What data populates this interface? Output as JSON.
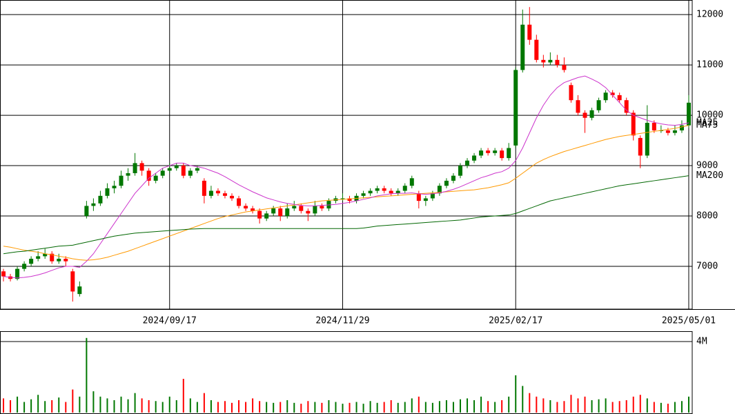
{
  "chart_data": [
    {
      "type": "candlestick",
      "categories": [
        null,
        null,
        null,
        null,
        null,
        null,
        null,
        null,
        null,
        null,
        null,
        null,
        null,
        null,
        null,
        null,
        null,
        null,
        null,
        null,
        null,
        null,
        null,
        null,
        "2024/09/17",
        null,
        null,
        null,
        null,
        null,
        null,
        null,
        null,
        null,
        null,
        null,
        null,
        null,
        null,
        null,
        null,
        null,
        null,
        null,
        null,
        null,
        null,
        null,
        null,
        "2024/11/29",
        null,
        null,
        null,
        null,
        null,
        null,
        null,
        null,
        null,
        null,
        null,
        null,
        null,
        null,
        null,
        null,
        null,
        null,
        null,
        null,
        null,
        null,
        null,
        null,
        "2025/02/17",
        null,
        null,
        null,
        null,
        null,
        null,
        null,
        null,
        null,
        null,
        null,
        null,
        null,
        null,
        null,
        null,
        null,
        null,
        null,
        null,
        null,
        null,
        null,
        null,
        "2025/05/01"
      ],
      "ohlc": [
        [
          6900,
          6950,
          6700,
          6800
        ],
        [
          6800,
          6850,
          6700,
          6750
        ],
        [
          6750,
          7000,
          6720,
          6950
        ],
        [
          6950,
          7100,
          6900,
          7050
        ],
        [
          7050,
          7200,
          7000,
          7150
        ],
        [
          7150,
          7300,
          7100,
          7200
        ],
        [
          7200,
          7350,
          7150,
          7250
        ],
        [
          7250,
          7300,
          7050,
          7100
        ],
        [
          7100,
          7250,
          7050,
          7150
        ],
        [
          7150,
          7200,
          7000,
          7100
        ],
        [
          6900,
          6950,
          6300,
          6500
        ],
        [
          6450,
          6700,
          6400,
          6600
        ],
        [
          8000,
          8300,
          7950,
          8200
        ],
        [
          8200,
          8350,
          8100,
          8250
        ],
        [
          8250,
          8500,
          8200,
          8400
        ],
        [
          8400,
          8650,
          8350,
          8550
        ],
        [
          8550,
          8700,
          8450,
          8600
        ],
        [
          8600,
          8900,
          8550,
          8800
        ],
        [
          8800,
          8950,
          8700,
          8850
        ],
        [
          8850,
          9250,
          8800,
          9050
        ],
        [
          9050,
          9100,
          8800,
          8900
        ],
        [
          8900,
          8950,
          8600,
          8700
        ],
        [
          8700,
          8850,
          8650,
          8800
        ],
        [
          8800,
          8950,
          8750,
          8900
        ],
        [
          8900,
          9050,
          8850,
          8950
        ],
        [
          8950,
          9050,
          8900,
          9000
        ],
        [
          9000,
          9050,
          8750,
          8800
        ],
        [
          8800,
          8950,
          8750,
          8900
        ],
        [
          8900,
          9000,
          8850,
          8950
        ],
        [
          8700,
          8750,
          8250,
          8400
        ],
        [
          8400,
          8600,
          8350,
          8500
        ],
        [
          8500,
          8550,
          8400,
          8450
        ],
        [
          8450,
          8500,
          8350,
          8400
        ],
        [
          8400,
          8450,
          8300,
          8350
        ],
        [
          8350,
          8400,
          8150,
          8200
        ],
        [
          8200,
          8250,
          8100,
          8150
        ],
        [
          8150,
          8200,
          8050,
          8100
        ],
        [
          8100,
          8150,
          7850,
          7950
        ],
        [
          7950,
          8100,
          7900,
          8050
        ],
        [
          8050,
          8200,
          8000,
          8150
        ],
        [
          8150,
          8200,
          7900,
          8000
        ],
        [
          8000,
          8250,
          7950,
          8150
        ],
        [
          8150,
          8300,
          8100,
          8200
        ],
        [
          8200,
          8250,
          8050,
          8100
        ],
        [
          8100,
          8150,
          7900,
          8050
        ],
        [
          8050,
          8300,
          8000,
          8200
        ],
        [
          8200,
          8250,
          8100,
          8150
        ],
        [
          8150,
          8350,
          8100,
          8300
        ],
        [
          8300,
          8400,
          8250,
          8350
        ],
        [
          8350,
          8450,
          8300,
          8350
        ],
        [
          8350,
          8400,
          8250,
          8300
        ],
        [
          8300,
          8450,
          8250,
          8400
        ],
        [
          8400,
          8500,
          8350,
          8450
        ],
        [
          8450,
          8550,
          8400,
          8500
        ],
        [
          8500,
          8600,
          8450,
          8550
        ],
        [
          8550,
          8600,
          8450,
          8500
        ],
        [
          8500,
          8550,
          8400,
          8450
        ],
        [
          8450,
          8550,
          8400,
          8500
        ],
        [
          8500,
          8650,
          8450,
          8600
        ],
        [
          8600,
          8800,
          8550,
          8750
        ],
        [
          8450,
          8500,
          8150,
          8300
        ],
        [
          8300,
          8400,
          8200,
          8350
        ],
        [
          8350,
          8500,
          8300,
          8450
        ],
        [
          8450,
          8650,
          8400,
          8600
        ],
        [
          8600,
          8750,
          8550,
          8700
        ],
        [
          8700,
          8850,
          8650,
          8800
        ],
        [
          8800,
          9050,
          8750,
          9000
        ],
        [
          9000,
          9150,
          8950,
          9100
        ],
        [
          9100,
          9250,
          9050,
          9200
        ],
        [
          9200,
          9350,
          9150,
          9300
        ],
        [
          9300,
          9350,
          9200,
          9250
        ],
        [
          9250,
          9350,
          9200,
          9300
        ],
        [
          9300,
          9350,
          9100,
          9150
        ],
        [
          9150,
          9450,
          9100,
          9350
        ],
        [
          9400,
          10950,
          9350,
          10900
        ],
        [
          10900,
          12100,
          10850,
          11800
        ],
        [
          11800,
          12150,
          11400,
          11500
        ],
        [
          11500,
          11600,
          11050,
          11100
        ],
        [
          11100,
          11200,
          10950,
          11050
        ],
        [
          11050,
          11250,
          11000,
          11100
        ],
        [
          11100,
          11200,
          10950,
          11000
        ],
        [
          11000,
          11150,
          10850,
          10900
        ],
        [
          10600,
          10650,
          10250,
          10300
        ],
        [
          10300,
          10400,
          10000,
          10050
        ],
        [
          10050,
          10100,
          9650,
          9950
        ],
        [
          9950,
          10150,
          9900,
          10100
        ],
        [
          10100,
          10350,
          10050,
          10300
        ],
        [
          10300,
          10500,
          10250,
          10450
        ],
        [
          10450,
          10500,
          10350,
          10400
        ],
        [
          10400,
          10450,
          10250,
          10300
        ],
        [
          10300,
          10350,
          10000,
          10050
        ],
        [
          10050,
          10100,
          9500,
          9600
        ],
        [
          9550,
          9600,
          8950,
          9200
        ],
        [
          9200,
          10200,
          9150,
          9850
        ],
        [
          9850,
          9900,
          9650,
          9700
        ],
        [
          9700,
          9800,
          9650,
          9700
        ],
        [
          9700,
          9750,
          9600,
          9650
        ],
        [
          9650,
          9800,
          9600,
          9700
        ],
        [
          9700,
          9900,
          9650,
          9800
        ],
        [
          9800,
          10400,
          9750,
          10250
        ]
      ],
      "up_color": "#007700",
      "down_color": "#ff0000",
      "series": [
        {
          "name": "MA75",
          "color": "#ff9900",
          "values": [
            7400,
            7380,
            7350,
            7320,
            7300,
            7280,
            7250,
            7230,
            7200,
            7180,
            7150,
            7130,
            7120,
            7130,
            7150,
            7180,
            7220,
            7260,
            7300,
            7350,
            7400,
            7450,
            7500,
            7550,
            7600,
            7650,
            7700,
            7750,
            7800,
            7850,
            7900,
            7950,
            7990,
            8020,
            8050,
            8080,
            8100,
            8120,
            8140,
            8160,
            8180,
            8200,
            8220,
            8240,
            8260,
            8280,
            8300,
            8310,
            8320,
            8330,
            8340,
            8350,
            8360,
            8370,
            8380,
            8390,
            8400,
            8410,
            8420,
            8430,
            8440,
            8450,
            8460,
            8470,
            8480,
            8490,
            8500,
            8510,
            8520,
            8540,
            8560,
            8590,
            8620,
            8660,
            8750,
            8850,
            8950,
            9050,
            9120,
            9180,
            9230,
            9280,
            9320,
            9360,
            9400,
            9440,
            9480,
            9520,
            9550,
            9580,
            9600,
            9620,
            9640,
            9660,
            9680,
            9700,
            9720,
            9740,
            9770,
            9800
          ]
        },
        {
          "name": "MA25",
          "color": "#cc33cc",
          "values": [
            6800,
            6780,
            6770,
            6780,
            6800,
            6830,
            6870,
            6920,
            6970,
            7000,
            7000,
            6980,
            7100,
            7250,
            7450,
            7650,
            7850,
            8050,
            8250,
            8450,
            8600,
            8750,
            8850,
            8950,
            9000,
            9050,
            9050,
            9000,
            8980,
            8950,
            8900,
            8850,
            8780,
            8700,
            8620,
            8550,
            8480,
            8420,
            8360,
            8320,
            8280,
            8250,
            8230,
            8210,
            8200,
            8200,
            8210,
            8220,
            8230,
            8250,
            8270,
            8300,
            8330,
            8360,
            8400,
            8420,
            8440,
            8450,
            8450,
            8460,
            8440,
            8430,
            8440,
            8460,
            8490,
            8530,
            8580,
            8640,
            8700,
            8760,
            8800,
            8850,
            8880,
            8950,
            9100,
            9350,
            9650,
            9950,
            10200,
            10400,
            10550,
            10650,
            10700,
            10750,
            10780,
            10720,
            10650,
            10550,
            10400,
            10250,
            10100,
            10000,
            9950,
            9900,
            9860,
            9830,
            9810,
            9800,
            9820,
            9850
          ]
        },
        {
          "name": "MA200",
          "color": "#006600",
          "values": [
            7250,
            7270,
            7290,
            7300,
            7320,
            7340,
            7360,
            7380,
            7400,
            7410,
            7420,
            7450,
            7480,
            7510,
            7540,
            7570,
            7600,
            7620,
            7640,
            7660,
            7670,
            7680,
            7690,
            7700,
            7710,
            7720,
            7730,
            7740,
            7745,
            7750,
            7750,
            7750,
            7750,
            7750,
            7750,
            7750,
            7750,
            7750,
            7750,
            7750,
            7750,
            7750,
            7750,
            7750,
            7750,
            7750,
            7750,
            7750,
            7750,
            7750,
            7750,
            7750,
            7760,
            7780,
            7800,
            7810,
            7820,
            7830,
            7840,
            7850,
            7860,
            7870,
            7880,
            7890,
            7900,
            7910,
            7920,
            7940,
            7960,
            7980,
            7990,
            8000,
            8010,
            8020,
            8050,
            8100,
            8150,
            8200,
            8250,
            8300,
            8330,
            8360,
            8390,
            8420,
            8450,
            8480,
            8510,
            8540,
            8570,
            8600,
            8620,
            8640,
            8660,
            8680,
            8700,
            8720,
            8740,
            8760,
            8780,
            8800
          ]
        }
      ],
      "ylim": [
        6150,
        12290
      ],
      "yticks": [
        7000,
        8000,
        9000,
        10000,
        11000,
        12000
      ],
      "grid": true
    },
    {
      "type": "bar",
      "values": [
        800000,
        700000,
        900000,
        600000,
        750000,
        1000000,
        650000,
        700000,
        850000,
        600000,
        1300000,
        900000,
        4200000,
        1200000,
        900000,
        800000,
        700000,
        900000,
        750000,
        1100000,
        800000,
        700000,
        650000,
        600000,
        900000,
        700000,
        1900000,
        800000,
        600000,
        1100000,
        700000,
        600000,
        650000,
        550000,
        700000,
        600000,
        800000,
        650000,
        600000,
        550000,
        600000,
        700000,
        550000,
        500000,
        650000,
        600000,
        550000,
        700000,
        600000,
        500000,
        550000,
        600000,
        500000,
        650000,
        550000,
        600000,
        700000,
        550000,
        600000,
        800000,
        900000,
        600000,
        550000,
        650000,
        700000,
        600000,
        750000,
        800000,
        700000,
        900000,
        650000,
        600000,
        700000,
        900000,
        2100000,
        1500000,
        1100000,
        900000,
        800000,
        700000,
        600000,
        650000,
        1000000,
        800000,
        900000,
        700000,
        750000,
        800000,
        600000,
        650000,
        700000,
        900000,
        1000000,
        800000,
        600000,
        550000,
        500000,
        600000,
        650000,
        900000
      ],
      "ylim": [
        0,
        4580000
      ],
      "yticks": [
        {
          "value": 4000000,
          "label": "4M"
        }
      ],
      "grid": true
    }
  ]
}
